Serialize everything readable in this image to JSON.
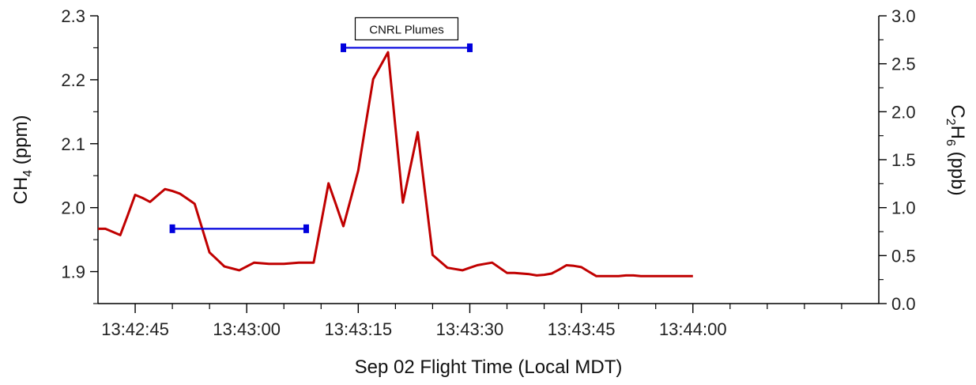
{
  "chart_data": {
    "type": "line",
    "xlabel": "Sep 02 Flight Time (Local MDT)",
    "ylabel_left": {
      "prefix": "CH",
      "sub": "4",
      "suffix": " (ppm)"
    },
    "ylabel_right": {
      "prefix": "C",
      "sub1": "2",
      "mid": "H",
      "sub2": "6",
      "suffix": " (ppb)"
    },
    "xlim": [
      0,
      105
    ],
    "x_ticks": [
      {
        "value": 5,
        "label": "13:42:45"
      },
      {
        "value": 20,
        "label": "13:43:00"
      },
      {
        "value": 35,
        "label": "13:43:15"
      },
      {
        "value": 50,
        "label": "13:43:30"
      },
      {
        "value": 65,
        "label": "13:43:45"
      },
      {
        "value": 80,
        "label": "13:44:00"
      }
    ],
    "ylim_left": [
      1.85,
      2.3
    ],
    "y_ticks_left": [
      "1.9",
      "2.0",
      "2.1",
      "2.2",
      "2.3"
    ],
    "ylim_right": [
      0.0,
      3.0
    ],
    "y_ticks_right": [
      "0.0",
      "0.5",
      "1.0",
      "1.5",
      "2.0",
      "2.5",
      "3.0"
    ],
    "grid": false,
    "series": [
      {
        "axis": "left",
        "color": "#c00000",
        "x": [
          0,
          1,
          2,
          3,
          4,
          5,
          6,
          7,
          8,
          9,
          10,
          11,
          12,
          13,
          14,
          15,
          16,
          17,
          18,
          19,
          20,
          21,
          22,
          23,
          24,
          25,
          26,
          27,
          28,
          29,
          30,
          31,
          32,
          33,
          34,
          35,
          36,
          37,
          38,
          39,
          40,
          41,
          42,
          43,
          44,
          45,
          46,
          47,
          48,
          49,
          50,
          51,
          52,
          53,
          54,
          55,
          56,
          57,
          58,
          59,
          60,
          61,
          62,
          63,
          64,
          65,
          66,
          67,
          68,
          69,
          70,
          71,
          72,
          73,
          74,
          75,
          76,
          77,
          78,
          79,
          80
        ],
        "values": [
          1.967,
          1.967,
          1.962,
          1.957,
          1.988,
          2.02,
          2.015,
          2.009,
          2.019,
          2.029,
          2.026,
          2.022,
          2.014,
          2.006,
          1.968,
          1.93,
          1.919,
          1.908,
          1.905,
          1.902,
          1.908,
          1.914,
          1.913,
          1.912,
          1.912,
          1.912,
          1.913,
          1.914,
          1.914,
          1.914,
          1.976,
          2.038,
          2.005,
          1.971,
          2.014,
          2.058,
          2.13,
          2.201,
          2.222,
          2.243,
          2.125,
          2.008,
          2.063,
          2.118,
          2.022,
          1.926,
          1.916,
          1.906,
          1.904,
          1.902,
          1.906,
          1.91,
          1.912,
          1.914,
          1.906,
          1.898,
          1.898,
          1.897,
          1.896,
          1.894,
          1.895,
          1.897,
          1.903,
          1.91,
          1.909,
          1.907,
          1.9,
          1.893,
          1.893,
          1.893,
          1.893,
          1.894,
          1.894,
          1.893,
          1.893,
          1.893,
          1.893,
          1.893,
          1.893,
          1.893,
          1.893
        ]
      }
    ],
    "annotations": [
      {
        "type": "range_bar",
        "color": "#0000dd",
        "x_start": 10,
        "x_end": 28,
        "y_left": 1.967
      },
      {
        "type": "range_bar",
        "color": "#0000dd",
        "x_start": 33,
        "x_end": 50,
        "y_left": 2.25,
        "label": "CNRL Plumes"
      }
    ]
  }
}
